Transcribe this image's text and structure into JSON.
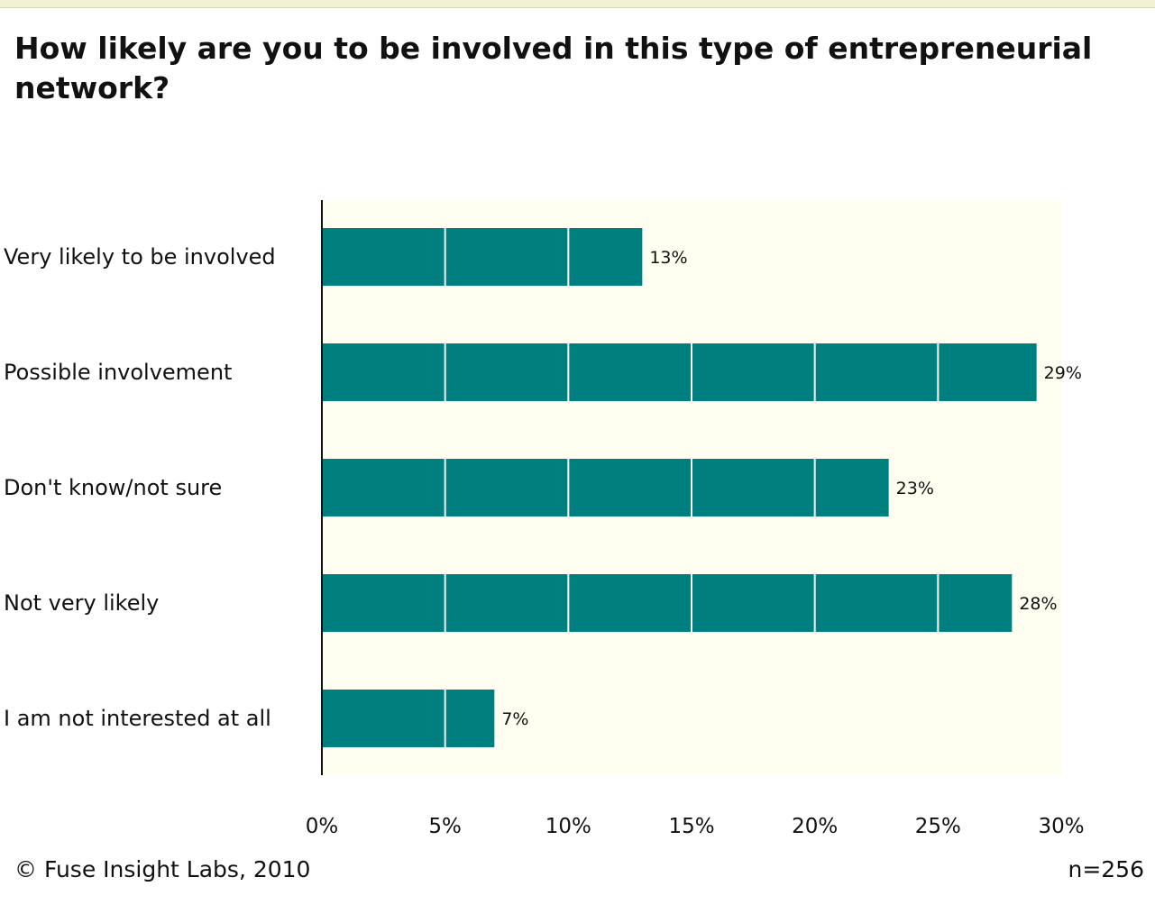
{
  "chart_data": {
    "type": "bar",
    "orientation": "horizontal",
    "title": "How likely are you to be involved in this type of entrepreneurial network?",
    "categories": [
      "Very likely to be involved",
      "Possible involvement",
      "Don't know/not sure",
      "Not very likely",
      "I am not interested at all"
    ],
    "values": [
      13,
      29,
      23,
      28,
      7
    ],
    "value_labels": [
      "13%",
      "29%",
      "23%",
      "28%",
      "7%"
    ],
    "xlim": [
      0,
      30
    ],
    "xticks": [
      0,
      5,
      10,
      15,
      20,
      25,
      30
    ],
    "xtick_labels": [
      "0%",
      "5%",
      "10%",
      "15%",
      "20%",
      "25%",
      "30%"
    ],
    "bar_color": "#007f7f",
    "plot_background": "#fefff0",
    "grid": false,
    "legend": "none"
  },
  "footer": {
    "copyright": "© Fuse Insight Labs, 2010",
    "sample_size": "n=256"
  }
}
